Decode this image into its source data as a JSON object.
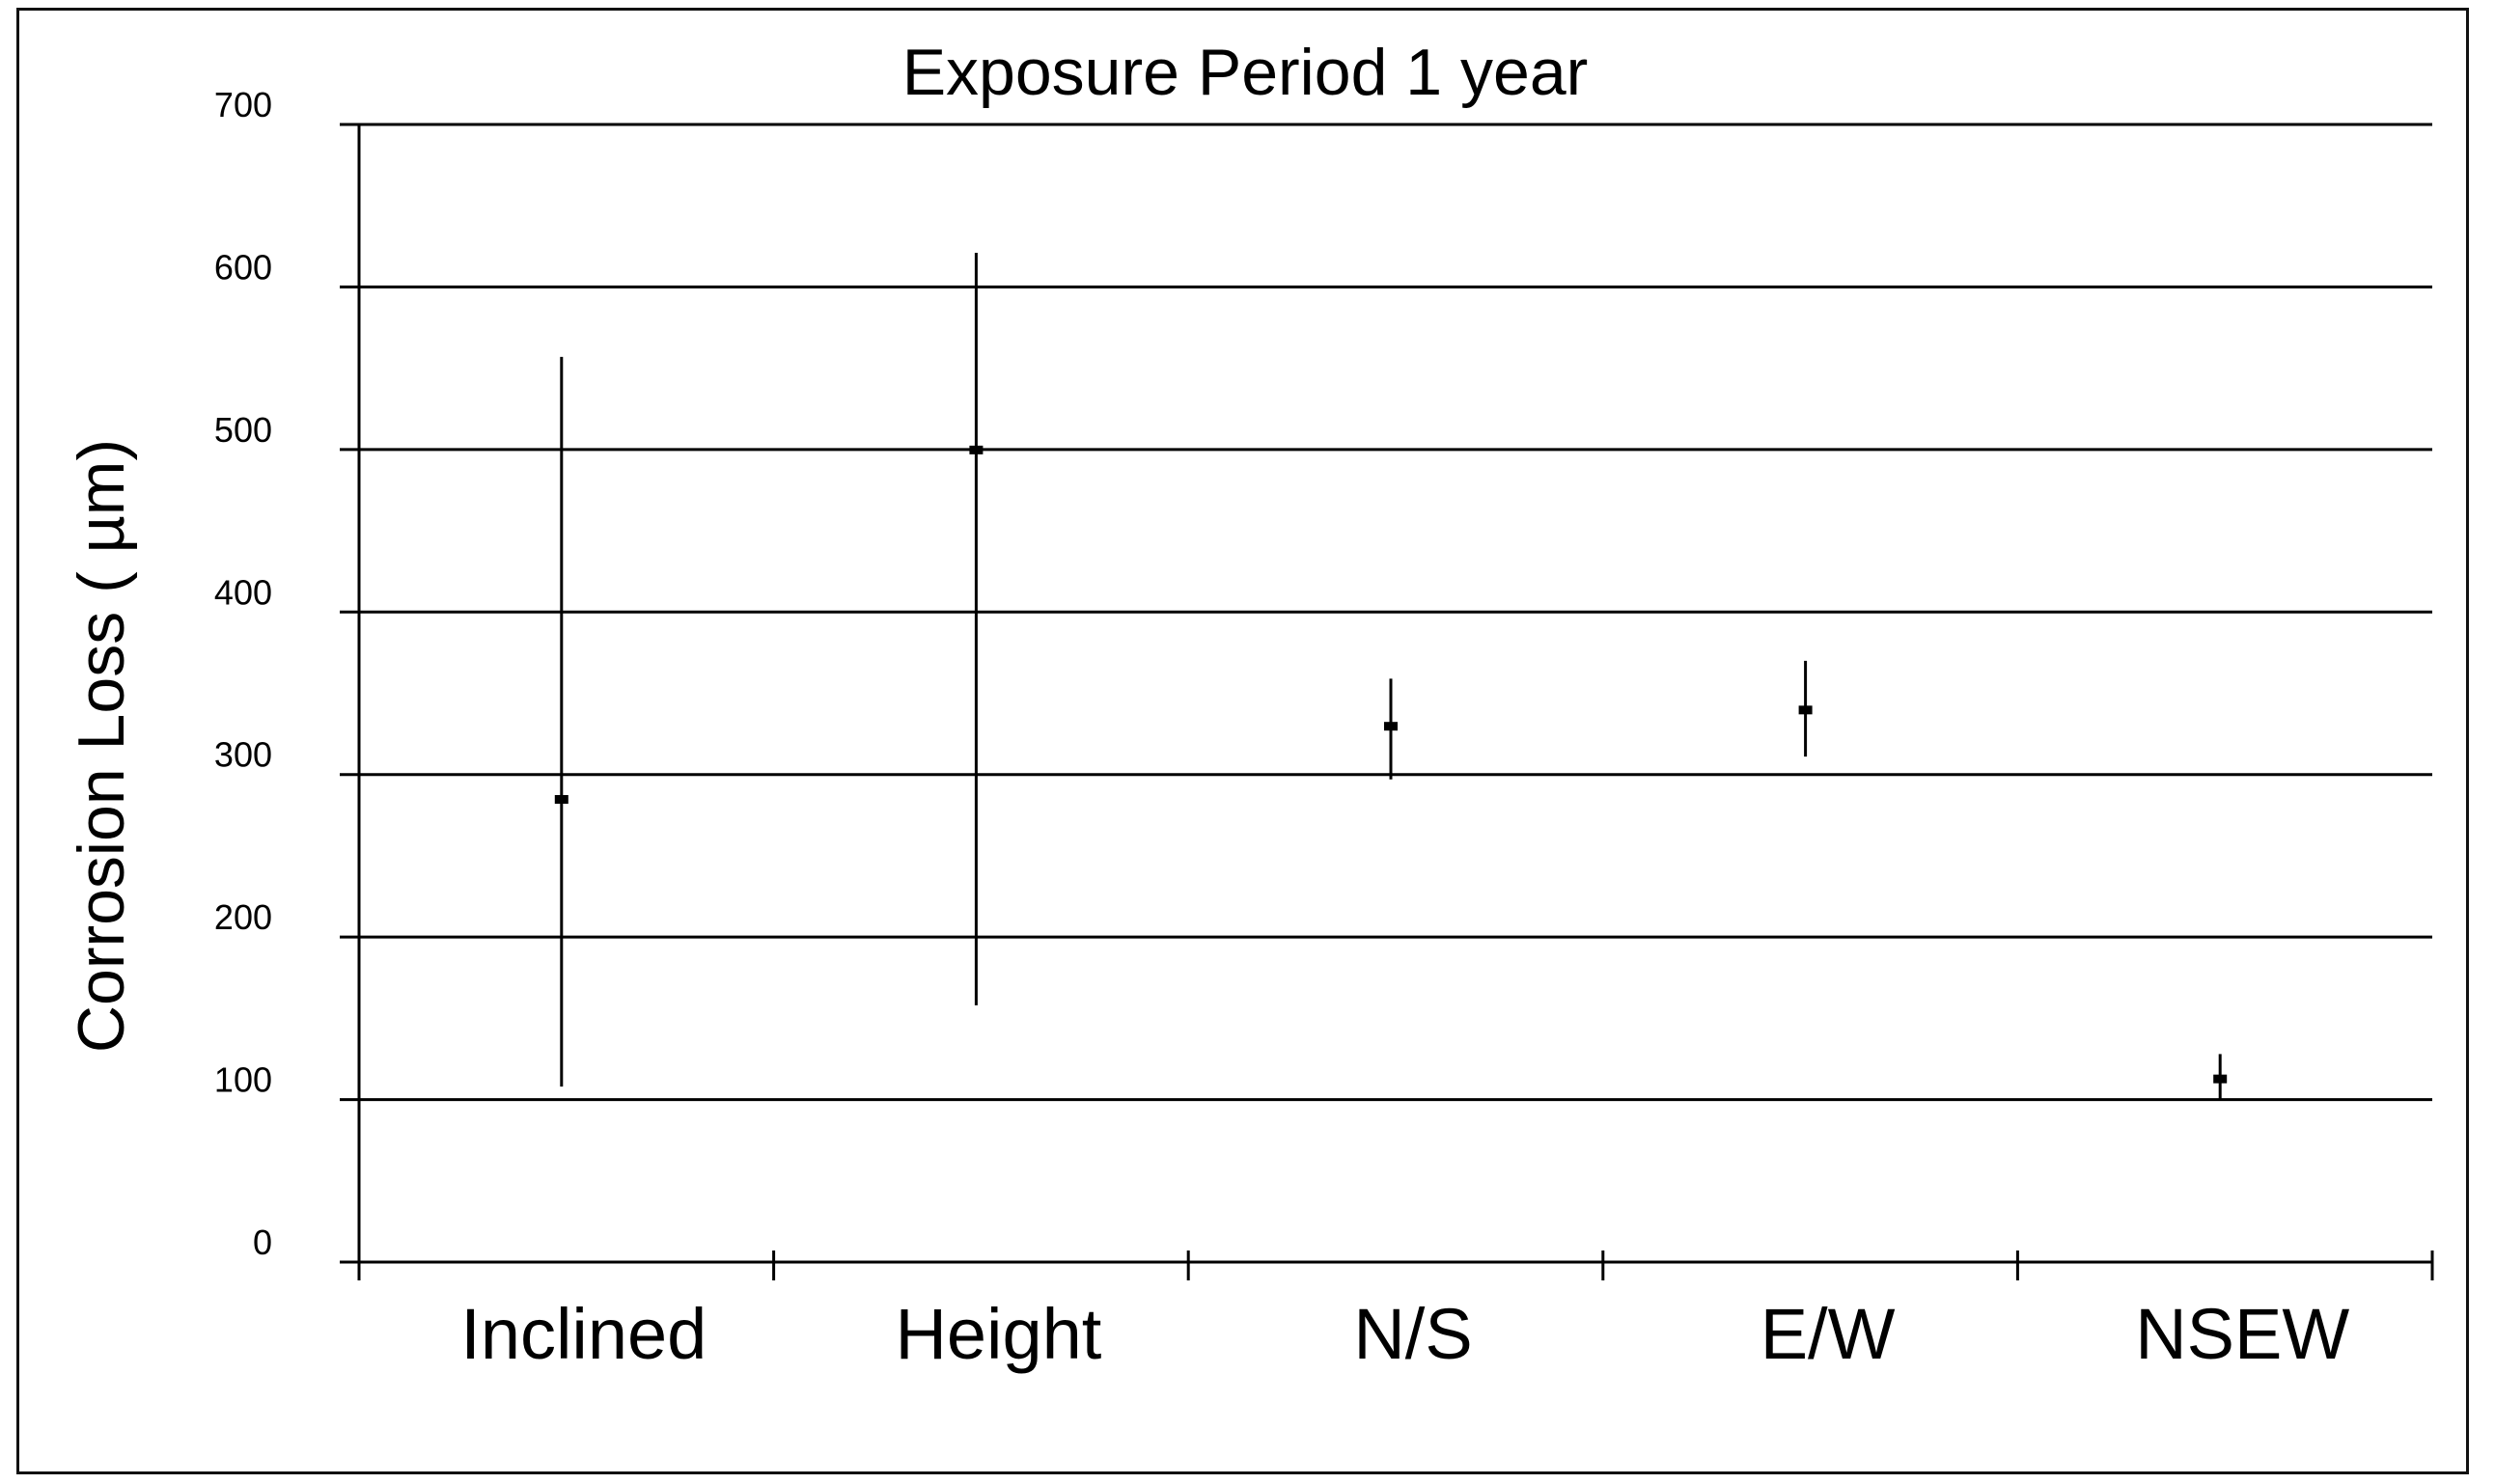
{
  "chart_data": {
    "type": "scatter",
    "title": "Exposure Period 1 year",
    "xlabel": "",
    "ylabel": "Corrosion Loss ( µm)",
    "categories": [
      "Inclined",
      "Height",
      "N/S",
      "E/W",
      "NSEW"
    ],
    "values": [
      285,
      500,
      330,
      340,
      113
    ],
    "error_low": [
      108,
      158,
      297,
      311,
      100
    ],
    "error_high": [
      557,
      621,
      359,
      370,
      128
    ],
    "yticks": [
      0,
      100,
      200,
      300,
      400,
      500,
      600,
      700
    ],
    "ylim": [
      0,
      700
    ],
    "grid": true,
    "legend": "none",
    "colors": {
      "marks": "#000000",
      "grid": "#000000",
      "background": "#ffffff"
    }
  }
}
